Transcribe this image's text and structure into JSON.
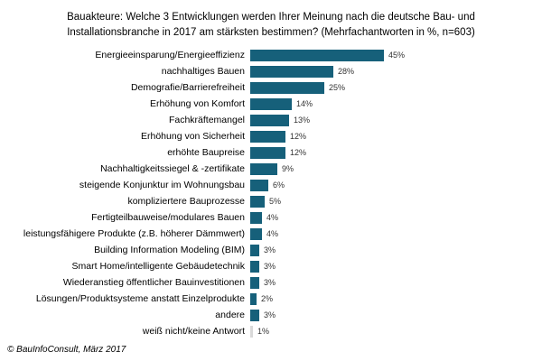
{
  "title": {
    "lines": [
      "Bauakteure: Welche 3 Entwicklungen werden Ihrer Meinung nach die deutsche Bau- und",
      "Installationsbranche in 2017 am stärksten bestimmen? (Mehrfachantworten in %, n=603)"
    ]
  },
  "chart_data": {
    "type": "bar",
    "orientation": "horizontal",
    "title": "Bauakteure: Welche 3 Entwicklungen werden Ihrer Meinung nach die deutsche Bau- und Installationsbranche in 2017 am stärksten bestimmen? (Mehrfachantworten in %, n=603)",
    "unit": "%",
    "n": 603,
    "xlim": [
      0,
      50
    ],
    "grid": false,
    "legend": false,
    "bar_color": "#16607A",
    "last_bar_color": "#D9D9D9",
    "categories": [
      "Energieeinsparung/Energieeffizienz",
      "nachhaltiges Bauen",
      "Demografie/Barrierefreiheit",
      "Erhöhung von Komfort",
      "Fachkräftemangel",
      "Erhöhung von Sicherheit",
      "erhöhte Baupreise",
      "Nachhaltigkeitssiegel & -zertifikate",
      "steigende Konjunktur im Wohnungsbau",
      "kompliziertere Bauprozesse",
      "Fertigteilbauweise/modulares Bauen",
      "leistungsfähigere Produkte (z.B. höherer Dämmwert)",
      "Building Information Modeling (BIM)",
      "Smart Home/intelligente Gebäudetechnik",
      "Wiederanstieg öffentlicher Bauinvestitionen",
      "Lösungen/Produktsysteme anstatt Einzelprodukte",
      "andere",
      "weiß nicht/keine Antwort"
    ],
    "values": [
      45,
      28,
      25,
      14,
      13,
      12,
      12,
      9,
      6,
      5,
      4,
      4,
      3,
      3,
      3,
      2,
      3,
      1
    ]
  },
  "footer": {
    "text": "© BauInfoConsult, März 2017"
  }
}
